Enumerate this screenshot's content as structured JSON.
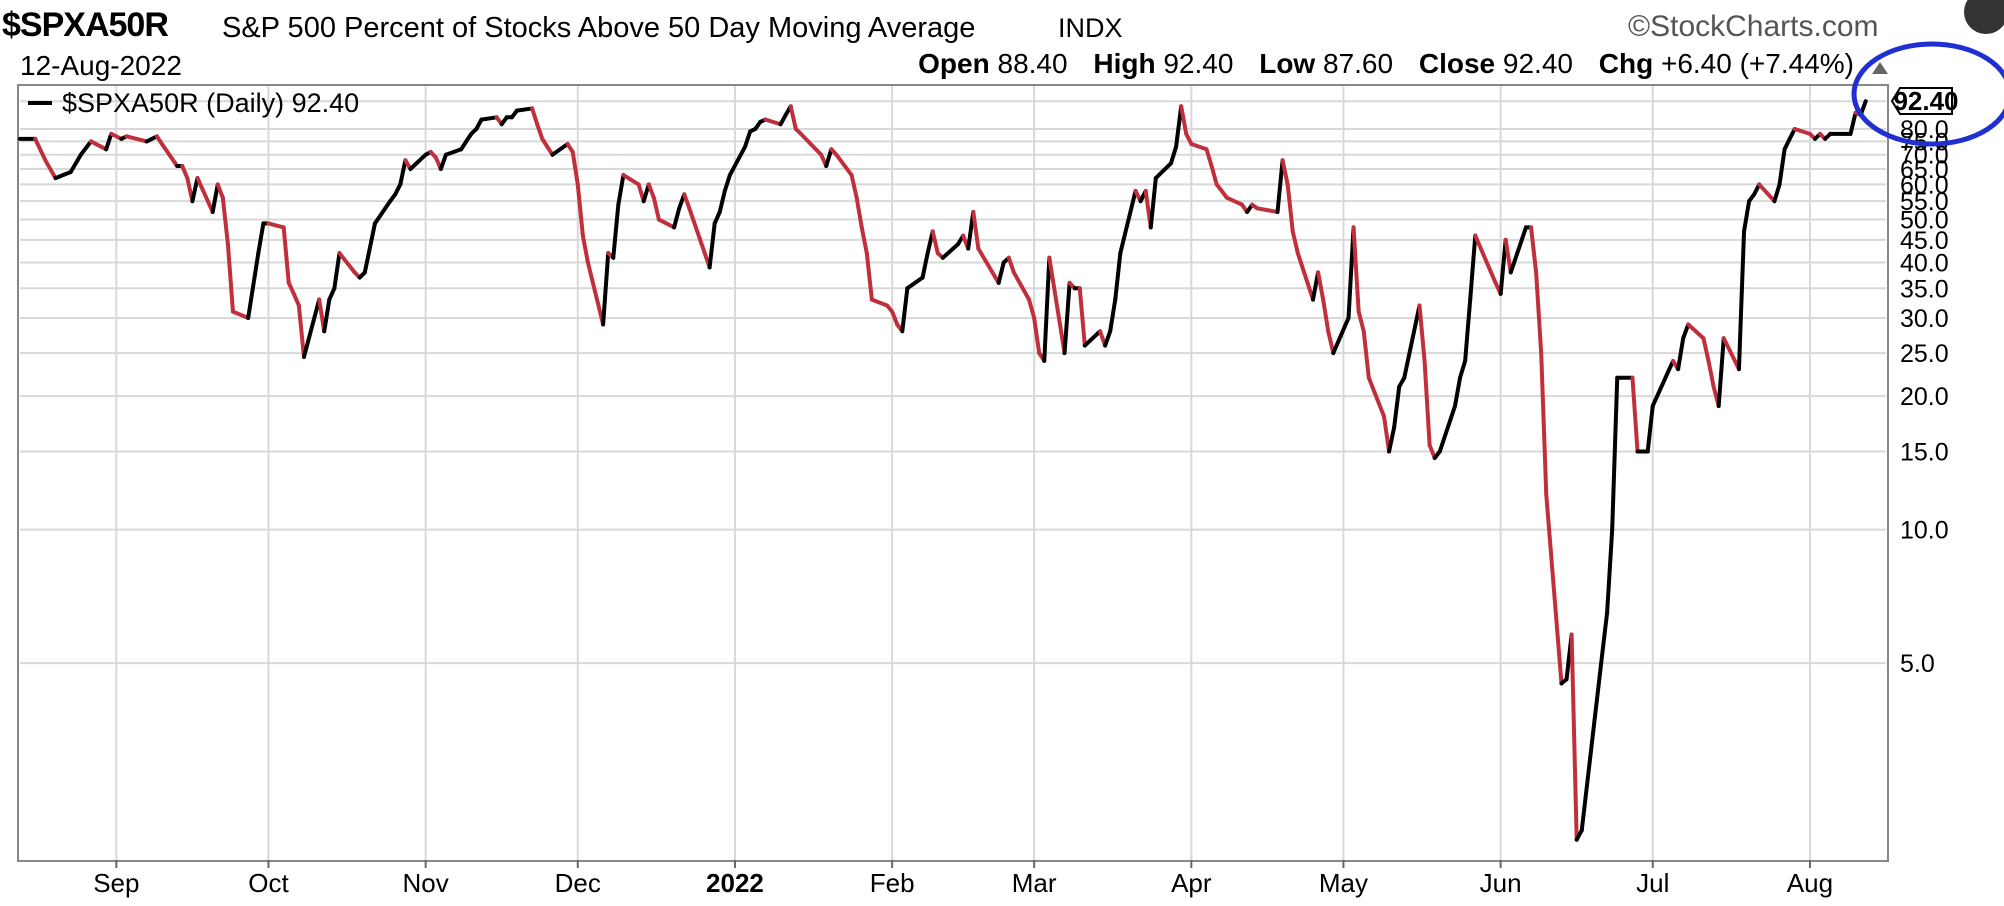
{
  "header": {
    "symbol": "$SPXA50R",
    "description": "S&P 500 Percent of Stocks Above 50 Day Moving Average",
    "exchange": "INDX",
    "brand": "©StockCharts.com",
    "date": "12-Aug-2022",
    "open_label": "Open",
    "open": "88.40",
    "high_label": "High",
    "high": "92.40",
    "low_label": "Low",
    "low": "87.60",
    "close_label": "Close",
    "close": "92.40",
    "chg_label": "Chg",
    "chg": "+6.40 (+7.44%)"
  },
  "legend": {
    "text": "$SPXA50R (Daily) 92.40"
  },
  "last_value_tag": "92.40",
  "colors": {
    "up": "#000000",
    "down": "#c0303c",
    "grid": "#d8d8d8",
    "highlight_circle": "#1f2fd0"
  },
  "chart_data": {
    "type": "line",
    "title": "S&P 500 Percent of Stocks Above 50 Day Moving Average",
    "y_scale": "log",
    "ylim": [
      1.8,
      100
    ],
    "y_ticks": [
      "5.0",
      "10.0",
      "15.0",
      "20.0",
      "25.0",
      "30.0",
      "35.0",
      "40.0",
      "45.0",
      "50.0",
      "55.0",
      "60.0",
      "65.0",
      "70.0",
      "75.0",
      "80.0",
      "92.40"
    ],
    "x_ticks": [
      "Sep",
      "Oct",
      "Nov",
      "Dec",
      "2022",
      "Feb",
      "Mar",
      "Apr",
      "May",
      "Jun",
      "Jul",
      "Aug"
    ],
    "grid": true,
    "legend_position": "top-left",
    "series": [
      {
        "name": "$SPXA50R (Daily)",
        "points": [
          [
            "2021-08-13",
            76
          ],
          [
            "2021-08-16",
            76
          ],
          [
            "2021-08-18",
            68
          ],
          [
            "2021-08-20",
            62
          ],
          [
            "2021-08-23",
            64
          ],
          [
            "2021-08-25",
            70
          ],
          [
            "2021-08-27",
            75
          ],
          [
            "2021-08-30",
            72
          ],
          [
            "2021-08-31",
            78
          ],
          [
            "2021-09-02",
            76
          ],
          [
            "2021-09-03",
            77
          ],
          [
            "2021-09-07",
            75
          ],
          [
            "2021-09-09",
            77
          ],
          [
            "2021-09-10",
            74
          ],
          [
            "2021-09-13",
            66
          ],
          [
            "2021-09-14",
            66
          ],
          [
            "2021-09-15",
            62
          ],
          [
            "2021-09-16",
            55
          ],
          [
            "2021-09-17",
            62
          ],
          [
            "2021-09-20",
            52
          ],
          [
            "2021-09-21",
            60
          ],
          [
            "2021-09-22",
            56
          ],
          [
            "2021-09-23",
            44
          ],
          [
            "2021-09-24",
            31
          ],
          [
            "2021-09-27",
            30
          ],
          [
            "2021-09-29",
            42
          ],
          [
            "2021-09-30",
            49
          ],
          [
            "2021-10-01",
            49
          ],
          [
            "2021-10-04",
            48
          ],
          [
            "2021-10-05",
            36
          ],
          [
            "2021-10-06",
            34
          ],
          [
            "2021-10-07",
            32
          ],
          [
            "2021-10-08",
            24.5
          ],
          [
            "2021-10-11",
            33
          ],
          [
            "2021-10-12",
            28
          ],
          [
            "2021-10-13",
            33
          ],
          [
            "2021-10-14",
            35
          ],
          [
            "2021-10-15",
            42
          ],
          [
            "2021-10-18",
            38
          ],
          [
            "2021-10-19",
            37
          ],
          [
            "2021-10-20",
            38
          ],
          [
            "2021-10-22",
            49
          ],
          [
            "2021-10-25",
            55
          ],
          [
            "2021-10-26",
            57
          ],
          [
            "2021-10-27",
            60
          ],
          [
            "2021-10-28",
            68
          ],
          [
            "2021-10-29",
            65
          ],
          [
            "2021-11-01",
            70
          ],
          [
            "2021-11-02",
            71
          ],
          [
            "2021-11-03",
            69
          ],
          [
            "2021-11-04",
            65
          ],
          [
            "2021-11-05",
            70
          ],
          [
            "2021-11-08",
            72
          ],
          [
            "2021-11-09",
            75
          ],
          [
            "2021-11-10",
            78
          ],
          [
            "2021-11-11",
            80
          ],
          [
            "2021-11-12",
            84
          ],
          [
            "2021-11-15",
            85
          ],
          [
            "2021-11-16",
            82
          ],
          [
            "2021-11-17",
            85
          ],
          [
            "2021-11-18",
            85
          ],
          [
            "2021-11-19",
            88
          ],
          [
            "2021-11-22",
            89
          ],
          [
            "2021-11-23",
            82
          ],
          [
            "2021-11-24",
            76
          ],
          [
            "2021-11-26",
            70
          ],
          [
            "2021-11-29",
            74
          ],
          [
            "2021-11-30",
            71
          ],
          [
            "2021-12-01",
            60
          ],
          [
            "2021-12-02",
            46
          ],
          [
            "2021-12-03",
            40
          ],
          [
            "2021-12-06",
            29
          ],
          [
            "2021-12-07",
            42
          ],
          [
            "2021-12-08",
            41
          ],
          [
            "2021-12-09",
            54
          ],
          [
            "2021-12-10",
            63
          ],
          [
            "2021-12-13",
            60
          ],
          [
            "2021-12-14",
            55
          ],
          [
            "2021-12-15",
            60
          ],
          [
            "2021-12-16",
            56
          ],
          [
            "2021-12-17",
            50
          ],
          [
            "2021-12-20",
            48
          ],
          [
            "2021-12-21",
            53
          ],
          [
            "2021-12-22",
            57
          ],
          [
            "2021-12-23",
            53
          ],
          [
            "2021-12-27",
            39
          ],
          [
            "2021-12-28",
            49
          ],
          [
            "2021-12-29",
            52
          ],
          [
            "2021-12-30",
            58
          ],
          [
            "2021-12-31",
            63
          ],
          [
            "2022-01-03",
            73
          ],
          [
            "2022-01-04",
            79
          ],
          [
            "2022-01-05",
            80
          ],
          [
            "2022-01-06",
            83
          ],
          [
            "2022-01-07",
            84
          ],
          [
            "2022-01-10",
            82
          ],
          [
            "2022-01-11",
            86
          ],
          [
            "2022-01-12",
            90
          ],
          [
            "2022-01-13",
            80
          ],
          [
            "2022-01-14",
            78
          ],
          [
            "2022-01-18",
            70
          ],
          [
            "2022-01-19",
            66
          ],
          [
            "2022-01-20",
            72
          ],
          [
            "2022-01-21",
            70
          ],
          [
            "2022-01-24",
            63
          ],
          [
            "2022-01-25",
            56
          ],
          [
            "2022-01-26",
            48
          ],
          [
            "2022-01-27",
            42
          ],
          [
            "2022-01-28",
            33
          ],
          [
            "2022-01-31",
            32
          ],
          [
            "2022-02-01",
            31
          ],
          [
            "2022-02-02",
            29
          ],
          [
            "2022-02-03",
            28
          ],
          [
            "2022-02-04",
            35
          ],
          [
            "2022-02-07",
            37
          ],
          [
            "2022-02-08",
            42
          ],
          [
            "2022-02-09",
            47
          ],
          [
            "2022-02-10",
            42
          ],
          [
            "2022-02-11",
            41
          ],
          [
            "2022-02-14",
            44
          ],
          [
            "2022-02-15",
            46
          ],
          [
            "2022-02-16",
            43
          ],
          [
            "2022-02-17",
            52
          ],
          [
            "2022-02-18",
            43
          ],
          [
            "2022-02-22",
            36
          ],
          [
            "2022-02-23",
            40
          ],
          [
            "2022-02-24",
            41
          ],
          [
            "2022-02-25",
            38
          ],
          [
            "2022-02-28",
            33
          ],
          [
            "2022-03-01",
            30
          ],
          [
            "2022-03-02",
            25
          ],
          [
            "2022-03-03",
            24
          ],
          [
            "2022-03-04",
            41
          ],
          [
            "2022-03-07",
            25
          ],
          [
            "2022-03-08",
            36
          ],
          [
            "2022-03-09",
            35
          ],
          [
            "2022-03-10",
            35
          ],
          [
            "2022-03-11",
            26
          ],
          [
            "2022-03-14",
            28
          ],
          [
            "2022-03-15",
            26
          ],
          [
            "2022-03-16",
            28
          ],
          [
            "2022-03-17",
            33
          ],
          [
            "2022-03-18",
            42
          ],
          [
            "2022-03-21",
            58
          ],
          [
            "2022-03-22",
            55
          ],
          [
            "2022-03-23",
            58
          ],
          [
            "2022-03-24",
            48
          ],
          [
            "2022-03-25",
            62
          ],
          [
            "2022-03-28",
            67
          ],
          [
            "2022-03-29",
            73
          ],
          [
            "2022-03-30",
            90
          ],
          [
            "2022-03-31",
            78
          ],
          [
            "2022-04-01",
            74
          ],
          [
            "2022-04-04",
            72
          ],
          [
            "2022-04-05",
            66
          ],
          [
            "2022-04-06",
            60
          ],
          [
            "2022-04-07",
            58
          ],
          [
            "2022-04-08",
            56
          ],
          [
            "2022-04-11",
            54
          ],
          [
            "2022-04-12",
            52
          ],
          [
            "2022-04-13",
            54
          ],
          [
            "2022-04-14",
            53
          ],
          [
            "2022-04-18",
            52
          ],
          [
            "2022-04-19",
            68
          ],
          [
            "2022-04-20",
            60
          ],
          [
            "2022-04-21",
            47
          ],
          [
            "2022-04-22",
            42
          ],
          [
            "2022-04-25",
            33
          ],
          [
            "2022-04-26",
            38
          ],
          [
            "2022-04-27",
            33
          ],
          [
            "2022-04-28",
            28
          ],
          [
            "2022-04-29",
            25
          ],
          [
            "2022-05-02",
            30
          ],
          [
            "2022-05-03",
            48
          ],
          [
            "2022-05-04",
            31
          ],
          [
            "2022-05-05",
            28
          ],
          [
            "2022-05-06",
            22
          ],
          [
            "2022-05-09",
            18
          ],
          [
            "2022-05-10",
            15
          ],
          [
            "2022-05-11",
            17
          ],
          [
            "2022-05-12",
            21
          ],
          [
            "2022-05-13",
            22
          ],
          [
            "2022-05-16",
            32
          ],
          [
            "2022-05-17",
            24
          ],
          [
            "2022-05-18",
            15.5
          ],
          [
            "2022-05-19",
            14.5
          ],
          [
            "2022-05-20",
            15
          ],
          [
            "2022-05-23",
            19
          ],
          [
            "2022-05-24",
            22
          ],
          [
            "2022-05-25",
            24
          ],
          [
            "2022-05-26",
            33
          ],
          [
            "2022-05-27",
            46
          ],
          [
            "2022-05-31",
            36
          ],
          [
            "2022-06-01",
            34
          ],
          [
            "2022-06-02",
            45
          ],
          [
            "2022-06-03",
            38
          ],
          [
            "2022-06-06",
            48
          ],
          [
            "2022-06-07",
            48
          ],
          [
            "2022-06-08",
            38
          ],
          [
            "2022-06-09",
            25
          ],
          [
            "2022-06-10",
            12
          ],
          [
            "2022-06-13",
            4.5
          ],
          [
            "2022-06-14",
            4.6
          ],
          [
            "2022-06-15",
            5.8
          ],
          [
            "2022-06-16",
            2.0
          ],
          [
            "2022-06-17",
            2.1
          ],
          [
            "2022-06-21",
            5.2
          ],
          [
            "2022-06-22",
            6.5
          ],
          [
            "2022-06-23",
            10
          ],
          [
            "2022-06-24",
            22
          ],
          [
            "2022-06-27",
            22
          ],
          [
            "2022-06-28",
            15
          ],
          [
            "2022-06-29",
            15
          ],
          [
            "2022-06-30",
            15
          ],
          [
            "2022-07-01",
            19
          ],
          [
            "2022-07-05",
            24
          ],
          [
            "2022-07-06",
            23
          ],
          [
            "2022-07-07",
            27
          ],
          [
            "2022-07-08",
            29
          ],
          [
            "2022-07-11",
            27
          ],
          [
            "2022-07-12",
            24
          ],
          [
            "2022-07-13",
            21
          ],
          [
            "2022-07-14",
            19
          ],
          [
            "2022-07-15",
            27
          ],
          [
            "2022-07-18",
            23
          ],
          [
            "2022-07-19",
            47
          ],
          [
            "2022-07-20",
            55
          ],
          [
            "2022-07-21",
            57
          ],
          [
            "2022-07-22",
            60
          ],
          [
            "2022-07-25",
            55
          ],
          [
            "2022-07-26",
            60
          ],
          [
            "2022-07-27",
            72
          ],
          [
            "2022-07-28",
            76
          ],
          [
            "2022-07-29",
            80
          ],
          [
            "2022-08-01",
            78
          ],
          [
            "2022-08-02",
            76
          ],
          [
            "2022-08-03",
            78
          ],
          [
            "2022-08-04",
            76
          ],
          [
            "2022-08-05",
            78
          ],
          [
            "2022-08-08",
            78
          ],
          [
            "2022-08-09",
            78
          ],
          [
            "2022-08-10",
            87
          ],
          [
            "2022-08-11",
            86
          ],
          [
            "2022-08-12",
            92.4
          ]
        ]
      }
    ]
  }
}
